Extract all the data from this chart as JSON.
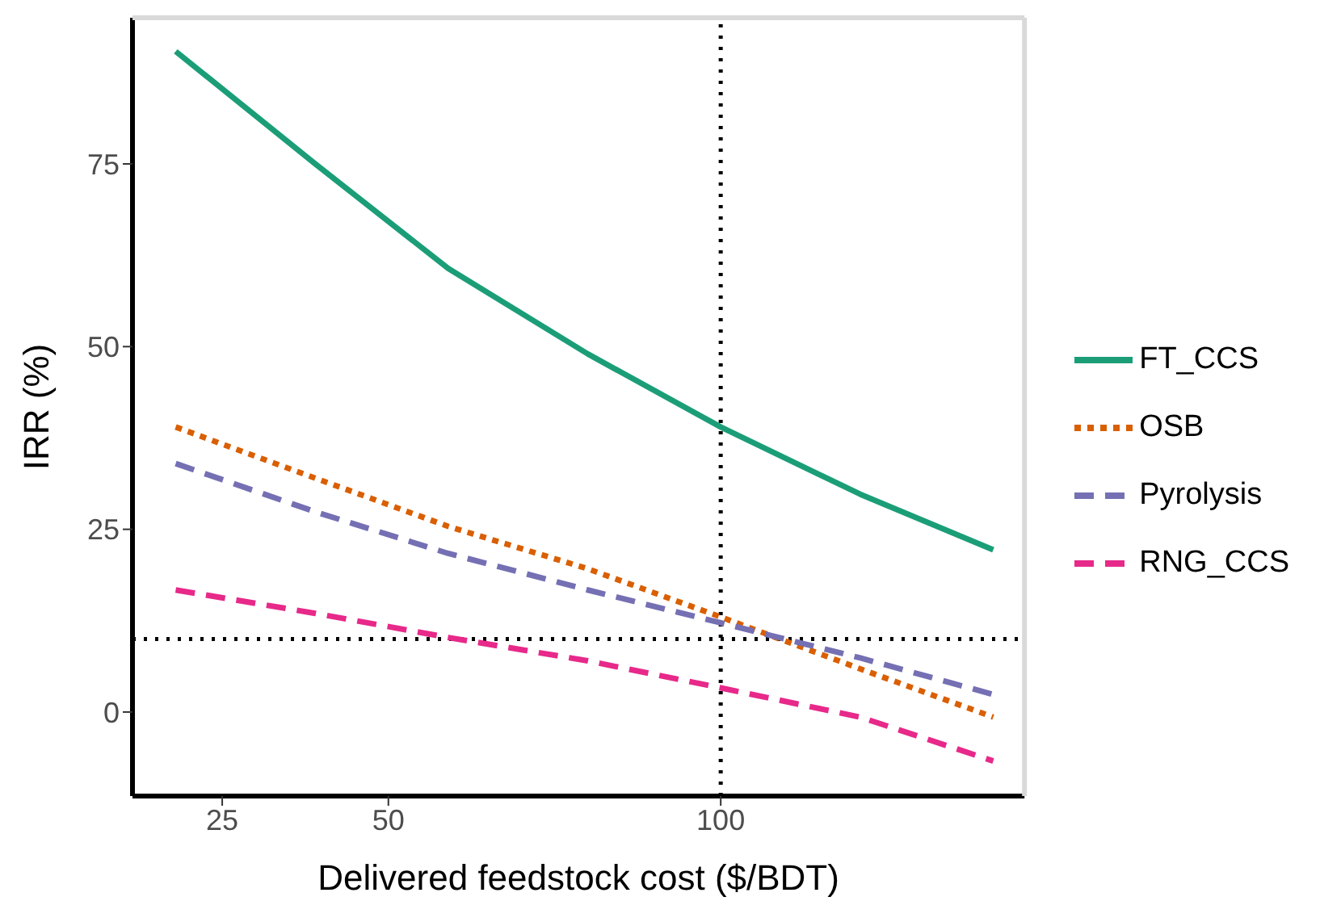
{
  "chart_data": {
    "type": "line",
    "xlabel": "Delivered feedstock cost ($/BDT)",
    "ylabel": "IRR (%)",
    "x": [
      18,
      39,
      59,
      80,
      100,
      121,
      141
    ],
    "series": [
      {
        "name": "FT_CCS",
        "color": "#1b9e77",
        "line_style": "solid",
        "values": [
          90.4,
          75,
          60.7,
          49,
          39,
          29.8,
          22.2
        ]
      },
      {
        "name": "OSB",
        "color": "#d95f02",
        "line_style": "dotted",
        "values": [
          39,
          32,
          25.4,
          19.6,
          13,
          5.9,
          -0.7
        ]
      },
      {
        "name": "Pyrolysis",
        "color": "#7570b3",
        "line_style": "dashed",
        "values": [
          34,
          27.4,
          21.7,
          16.7,
          12.2,
          7.4,
          2.4
        ]
      },
      {
        "name": "RNG_CCS",
        "color": "#e7298a",
        "line_style": "dashed",
        "values": [
          16.7,
          13.5,
          10.2,
          7,
          3.3,
          -0.7,
          -6.7
        ]
      }
    ],
    "xlim": [
      11.5,
      145.7
    ],
    "xticks": [
      25,
      50,
      100
    ],
    "ylim": [
      -11.5,
      95
    ],
    "yticks": [
      0,
      25,
      50,
      75
    ],
    "ref_lines": [
      {
        "axis": "x",
        "value": 100,
        "line_style": "dotted"
      },
      {
        "axis": "y",
        "value": 10,
        "line_style": "dotted"
      }
    ],
    "grid": false,
    "legend": "right",
    "marker": "none"
  }
}
